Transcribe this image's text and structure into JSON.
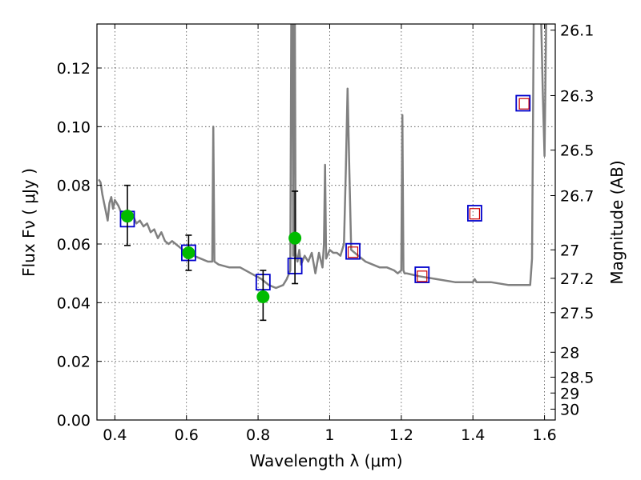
{
  "chart_data": {
    "type": "scatter",
    "title": "",
    "xlabel": "Wavelength  λ (μm)",
    "ylabel": "Flux  Fν  ( μJy )",
    "ylabel_right": "Magnitude (AB)",
    "xlim": [
      0.35,
      1.63
    ],
    "ylim": [
      0.0,
      0.135
    ],
    "grid": true,
    "x_ticks": [
      0.4,
      0.6,
      0.8,
      1.0,
      1.2,
      1.4,
      1.6
    ],
    "x_tick_labels": [
      "0.4",
      "0.6",
      "0.8",
      "1",
      "1.2",
      "1.4",
      "1.6"
    ],
    "y_ticks": [
      0.0,
      0.02,
      0.04,
      0.06,
      0.08,
      0.1,
      0.12
    ],
    "y_tick_labels": [
      "0.00",
      "0.02",
      "0.04",
      "0.06",
      "0.08",
      "0.10",
      "0.12"
    ],
    "right_axis_ticks": [
      {
        "label": "26.1",
        "flux": 0.1329
      },
      {
        "label": "26.3",
        "flux": 0.1106
      },
      {
        "label": "26.5",
        "flux": 0.092
      },
      {
        "label": "26.7",
        "flux": 0.0765
      },
      {
        "label": "27",
        "flux": 0.058
      },
      {
        "label": "27.2",
        "flux": 0.0483
      },
      {
        "label": "27.5",
        "flux": 0.0366
      },
      {
        "label": "28",
        "flux": 0.0231
      },
      {
        "label": "28.5",
        "flux": 0.0146
      },
      {
        "label": "29",
        "flux": 0.0092
      },
      {
        "label": "30",
        "flux": 0.0037
      }
    ],
    "series": [
      {
        "kind": "line",
        "color": "#808080",
        "x": [
          0.355,
          0.36,
          0.365,
          0.37,
          0.375,
          0.38,
          0.385,
          0.39,
          0.395,
          0.4,
          0.41,
          0.42,
          0.43,
          0.44,
          0.45,
          0.46,
          0.47,
          0.48,
          0.49,
          0.5,
          0.51,
          0.52,
          0.53,
          0.54,
          0.55,
          0.56,
          0.57,
          0.58,
          0.59,
          0.6,
          0.62,
          0.64,
          0.66,
          0.672,
          0.675,
          0.678,
          0.69,
          0.72,
          0.75,
          0.78,
          0.81,
          0.83,
          0.85,
          0.87,
          0.88,
          0.89,
          0.895,
          0.898,
          0.901,
          0.905,
          0.91,
          0.915,
          0.92,
          0.93,
          0.94,
          0.95,
          0.96,
          0.97,
          0.98,
          0.984,
          0.987,
          0.99,
          1.0,
          1.01,
          1.02,
          1.03,
          1.04,
          1.045,
          1.05,
          1.055,
          1.06,
          1.08,
          1.1,
          1.12,
          1.14,
          1.16,
          1.18,
          1.19,
          1.2,
          1.203,
          1.206,
          1.209,
          1.215,
          1.25,
          1.3,
          1.35,
          1.4,
          1.405,
          1.41,
          1.45,
          1.5,
          1.53,
          1.55,
          1.56,
          1.565,
          1.57,
          1.58,
          1.59,
          1.595,
          1.6,
          1.605,
          1.61
        ],
        "y": [
          0.082,
          0.081,
          0.077,
          0.074,
          0.071,
          0.068,
          0.074,
          0.076,
          0.072,
          0.075,
          0.073,
          0.07,
          0.071,
          0.068,
          0.07,
          0.067,
          0.068,
          0.066,
          0.067,
          0.064,
          0.065,
          0.062,
          0.064,
          0.061,
          0.06,
          0.061,
          0.06,
          0.059,
          0.058,
          0.057,
          0.056,
          0.055,
          0.054,
          0.054,
          0.1,
          0.054,
          0.053,
          0.052,
          0.052,
          0.05,
          0.048,
          0.046,
          0.045,
          0.046,
          0.048,
          0.051,
          0.2,
          0.056,
          0.2,
          0.057,
          0.054,
          0.058,
          0.053,
          0.056,
          0.054,
          0.057,
          0.05,
          0.057,
          0.052,
          0.06,
          0.087,
          0.055,
          0.058,
          0.057,
          0.057,
          0.056,
          0.06,
          0.085,
          0.113,
          0.085,
          0.058,
          0.056,
          0.054,
          0.053,
          0.052,
          0.052,
          0.051,
          0.05,
          0.051,
          0.104,
          0.051,
          0.05,
          0.05,
          0.049,
          0.048,
          0.047,
          0.047,
          0.048,
          0.047,
          0.047,
          0.046,
          0.046,
          0.046,
          0.046,
          0.055,
          0.14,
          0.14,
          0.14,
          0.112,
          0.09,
          0.14,
          0.14
        ]
      },
      {
        "kind": "observed",
        "color": "#00bb00",
        "points": [
          {
            "x": 0.435,
            "y": 0.0695,
            "err_lo": 0.0595,
            "err_hi": 0.08
          },
          {
            "x": 0.606,
            "y": 0.057,
            "err_lo": 0.051,
            "err_hi": 0.063
          },
          {
            "x": 0.814,
            "y": 0.042,
            "err_lo": 0.034,
            "err_hi": 0.051
          },
          {
            "x": 0.903,
            "y": 0.062,
            "err_lo": 0.0465,
            "err_hi": 0.078
          }
        ]
      },
      {
        "kind": "model-blue",
        "color": "#0000cc",
        "points": [
          {
            "x": 0.435,
            "y": 0.0685
          },
          {
            "x": 0.606,
            "y": 0.057
          },
          {
            "x": 0.814,
            "y": 0.047
          },
          {
            "x": 0.903,
            "y": 0.0525
          },
          {
            "x": 1.065,
            "y": 0.0575
          },
          {
            "x": 1.258,
            "y": 0.0495
          },
          {
            "x": 1.405,
            "y": 0.0705
          },
          {
            "x": 1.54,
            "y": 0.108
          }
        ]
      },
      {
        "kind": "model-red",
        "color": "#cc0000",
        "points": [
          {
            "x": 1.065,
            "y": 0.0572
          },
          {
            "x": 1.258,
            "y": 0.049
          },
          {
            "x": 1.405,
            "y": 0.0703
          },
          {
            "x": 1.543,
            "y": 0.1078
          }
        ]
      }
    ]
  }
}
